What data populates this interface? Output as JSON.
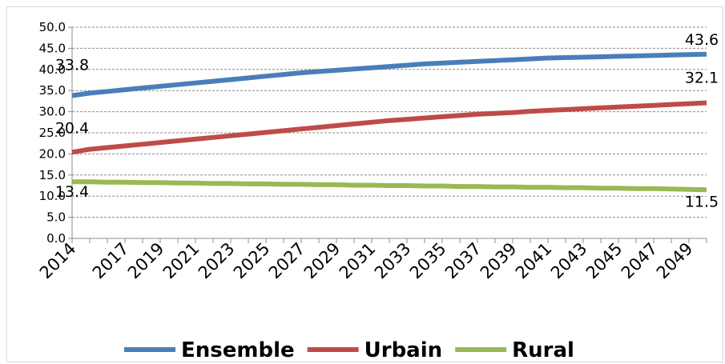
{
  "chart_data": {
    "type": "line",
    "title": "",
    "xlabel": "",
    "ylabel": "",
    "ylim": [
      0,
      50
    ],
    "yticks": [
      "0.0",
      "5.0",
      "10.0",
      "15.0",
      "20.0",
      "25.0",
      "30.0",
      "35.0",
      "40.0",
      "45.0",
      "50.0"
    ],
    "x": [
      2014,
      2015,
      2016,
      2017,
      2018,
      2019,
      2020,
      2021,
      2022,
      2023,
      2024,
      2025,
      2026,
      2027,
      2028,
      2029,
      2030,
      2031,
      2032,
      2033,
      2034,
      2035,
      2036,
      2037,
      2038,
      2039,
      2040,
      2041,
      2042,
      2043,
      2044,
      2045,
      2046,
      2047,
      2048,
      2049,
      2050
    ],
    "xtick_labels": [
      "2014",
      "2017",
      "2019",
      "2021",
      "2023",
      "2025",
      "2027",
      "2029",
      "2031",
      "2033",
      "2035",
      "2037",
      "2039",
      "2041",
      "2043",
      "2045",
      "2047",
      "2049"
    ],
    "grid": "horizontal dashed",
    "legend_position": "bottom",
    "series": [
      {
        "name": "Ensemble",
        "color": "#4a7ebb",
        "values": [
          33.8,
          34.4,
          34.8,
          35.2,
          35.6,
          36.0,
          36.4,
          36.8,
          37.2,
          37.6,
          38.0,
          38.4,
          38.8,
          39.2,
          39.5,
          39.8,
          40.1,
          40.4,
          40.7,
          41.0,
          41.3,
          41.5,
          41.7,
          41.9,
          42.1,
          42.3,
          42.5,
          42.7,
          42.8,
          42.9,
          43.0,
          43.1,
          43.2,
          43.3,
          43.4,
          43.5,
          43.6
        ],
        "start_label": "33.8",
        "end_label": "43.6"
      },
      {
        "name": "Urbain",
        "color": "#be4b48",
        "values": [
          20.4,
          21.1,
          21.5,
          21.9,
          22.3,
          22.7,
          23.1,
          23.5,
          23.9,
          24.3,
          24.7,
          25.1,
          25.5,
          25.9,
          26.3,
          26.7,
          27.1,
          27.5,
          27.9,
          28.2,
          28.5,
          28.8,
          29.1,
          29.4,
          29.6,
          29.8,
          30.1,
          30.3,
          30.5,
          30.7,
          30.9,
          31.1,
          31.3,
          31.5,
          31.7,
          31.9,
          32.1
        ],
        "start_label": "20.4",
        "end_label": "32.1"
      },
      {
        "name": "Rural",
        "color": "#98b954",
        "values": [
          13.4,
          13.4,
          13.3,
          13.3,
          13.2,
          13.2,
          13.1,
          13.1,
          13.0,
          13.0,
          12.9,
          12.9,
          12.8,
          12.8,
          12.7,
          12.7,
          12.6,
          12.6,
          12.5,
          12.5,
          12.4,
          12.4,
          12.3,
          12.3,
          12.2,
          12.2,
          12.1,
          12.1,
          12.0,
          12.0,
          11.9,
          11.9,
          11.8,
          11.8,
          11.7,
          11.6,
          11.5
        ],
        "start_label": "13.4",
        "end_label": "11.5"
      }
    ]
  }
}
